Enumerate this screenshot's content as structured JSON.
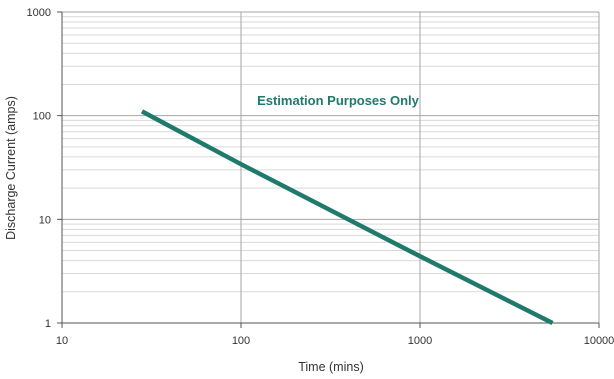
{
  "chart_data": {
    "type": "line",
    "xlabel": "Time (mins)",
    "ylabel": "Discharge Current (amps)",
    "xscale": "log",
    "yscale": "log",
    "xlim": [
      10,
      10000
    ],
    "ylim": [
      1,
      1000
    ],
    "x_ticks": [
      10,
      100,
      1000,
      10000
    ],
    "y_ticks": [
      1,
      10,
      100,
      1000
    ],
    "x_tick_labels": [
      "10",
      "100",
      "1000",
      "10000"
    ],
    "y_tick_labels": [
      "1",
      "10",
      "100",
      "1000"
    ],
    "grid": true,
    "annotation": "Estimation Purposes Only",
    "colors": {
      "line": "#1f7a6c",
      "annotation": "#1f7a6c",
      "major_grid": "#a6a6a6",
      "minor_grid": "#d9d9d9",
      "axis": "#555555"
    },
    "series": [
      {
        "x": [
          28,
          100,
          1000,
          5500
        ],
        "y": [
          110,
          34,
          4.4,
          1
        ]
      }
    ]
  }
}
